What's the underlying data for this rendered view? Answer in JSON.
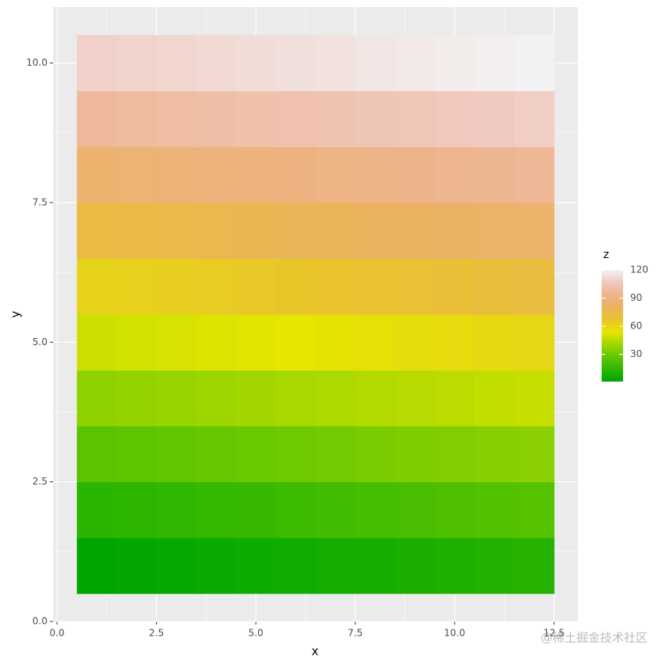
{
  "chart_data": {
    "type": "heatmap",
    "x_label": "x",
    "y_label": "y",
    "x": [
      1,
      2,
      3,
      4,
      5,
      6,
      7,
      8,
      9,
      10,
      11,
      12
    ],
    "y": [
      1,
      2,
      3,
      4,
      5,
      6,
      7,
      8,
      9,
      10
    ],
    "z": [
      [
        1,
        2,
        3,
        4,
        5,
        6,
        7,
        8,
        9,
        10,
        11,
        12
      ],
      [
        13,
        14,
        15,
        16,
        17,
        18,
        19,
        20,
        21,
        22,
        23,
        24
      ],
      [
        25,
        26,
        27,
        28,
        29,
        30,
        31,
        32,
        33,
        34,
        35,
        36
      ],
      [
        37,
        38,
        39,
        40,
        41,
        42,
        43,
        44,
        45,
        46,
        47,
        48
      ],
      [
        49,
        50,
        51,
        52,
        53,
        54,
        55,
        56,
        57,
        58,
        59,
        60
      ],
      [
        61,
        62,
        63,
        64,
        65,
        66,
        67,
        68,
        69,
        70,
        71,
        72
      ],
      [
        73,
        74,
        75,
        76,
        77,
        78,
        79,
        80,
        81,
        82,
        83,
        84
      ],
      [
        85,
        86,
        87,
        88,
        89,
        90,
        91,
        92,
        93,
        94,
        95,
        96
      ],
      [
        97,
        98,
        99,
        100,
        101,
        102,
        103,
        104,
        105,
        106,
        107,
        108
      ],
      [
        109,
        110,
        111,
        112,
        113,
        114,
        115,
        116,
        117,
        118,
        119,
        120
      ]
    ],
    "xlim": [
      -0.1,
      13.1
    ],
    "ylim": [
      0,
      11
    ],
    "xticks": [
      {
        "value": 0,
        "label": "0.0"
      },
      2.5,
      {
        "value": 5,
        "label": "5.0"
      },
      7.5,
      {
        "value": 10,
        "label": "10.0"
      },
      12.5
    ],
    "yticks": [
      {
        "value": 0,
        "label": "0.0"
      },
      2.5,
      {
        "value": 5,
        "label": "5.0"
      },
      7.5,
      {
        "value": 10,
        "label": "10.0"
      }
    ],
    "grid": true,
    "colors": [
      "#00A600",
      "#2DB600",
      "#63C600",
      "#A0D600",
      "#E6E600",
      "#E8C32E",
      "#EBB25E",
      "#EDB48E",
      "#F0C9C0",
      "#F2F2F2"
    ],
    "legend_title": "z",
    "colorbar_lim": [
      1,
      120
    ],
    "colorbar_ticks": [
      30,
      60,
      90,
      120
    ]
  },
  "watermark": "@稀土掘金技术社区"
}
